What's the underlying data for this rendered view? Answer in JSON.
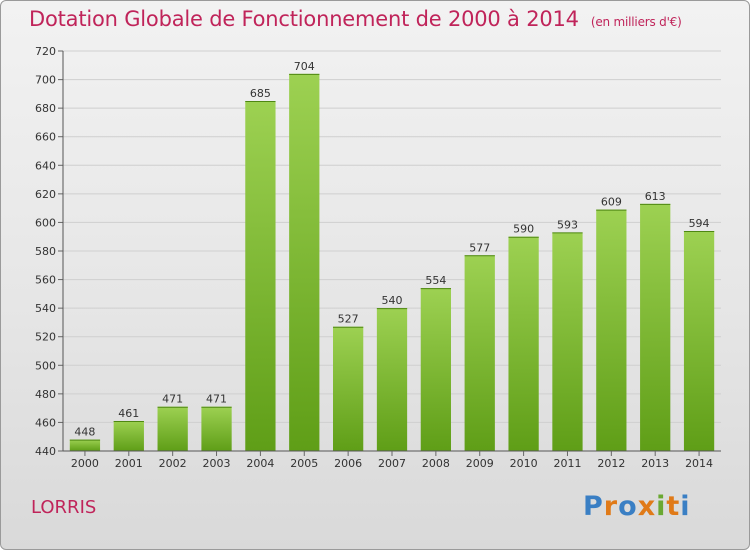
{
  "header": {
    "title": "Dotation Globale de Fonctionnement de 2000 à 2014",
    "subtitle": "(en milliers d'€)"
  },
  "footer": {
    "commune": "LORRIS",
    "logo_letters": [
      "P",
      "r",
      "o",
      "x",
      "i",
      "t",
      "i"
    ]
  },
  "chart_data": {
    "type": "bar",
    "title": "Dotation Globale de Fonctionnement de 2000 à 2014",
    "subtitle": "(en milliers d'€)",
    "xlabel": "",
    "ylabel": "",
    "categories": [
      "2000",
      "2001",
      "2002",
      "2003",
      "2004",
      "2005",
      "2006",
      "2007",
      "2008",
      "2009",
      "2010",
      "2011",
      "2012",
      "2013",
      "2014"
    ],
    "values": [
      448,
      461,
      471,
      471,
      685,
      704,
      527,
      540,
      554,
      577,
      590,
      593,
      609,
      613,
      594
    ],
    "data_labels": [
      "448",
      "461",
      "471",
      "471",
      "685",
      "704",
      "527",
      "540",
      "554",
      "577",
      "590",
      "593",
      "609",
      "613",
      "594"
    ],
    "ylim": [
      440,
      720
    ],
    "yticks": [
      440,
      460,
      480,
      500,
      520,
      540,
      560,
      580,
      600,
      620,
      640,
      660,
      680,
      700,
      720
    ],
    "ytick_labels": [
      "440",
      "460",
      "480",
      "500",
      "520",
      "540",
      "560",
      "580",
      "600",
      "620",
      "640",
      "660",
      "680",
      "700",
      "720"
    ],
    "grid": true,
    "legend": "none",
    "colors": {
      "bar_light": "#9dd152",
      "bar_dark": "#5f9e17",
      "title": "#c0245a"
    }
  }
}
